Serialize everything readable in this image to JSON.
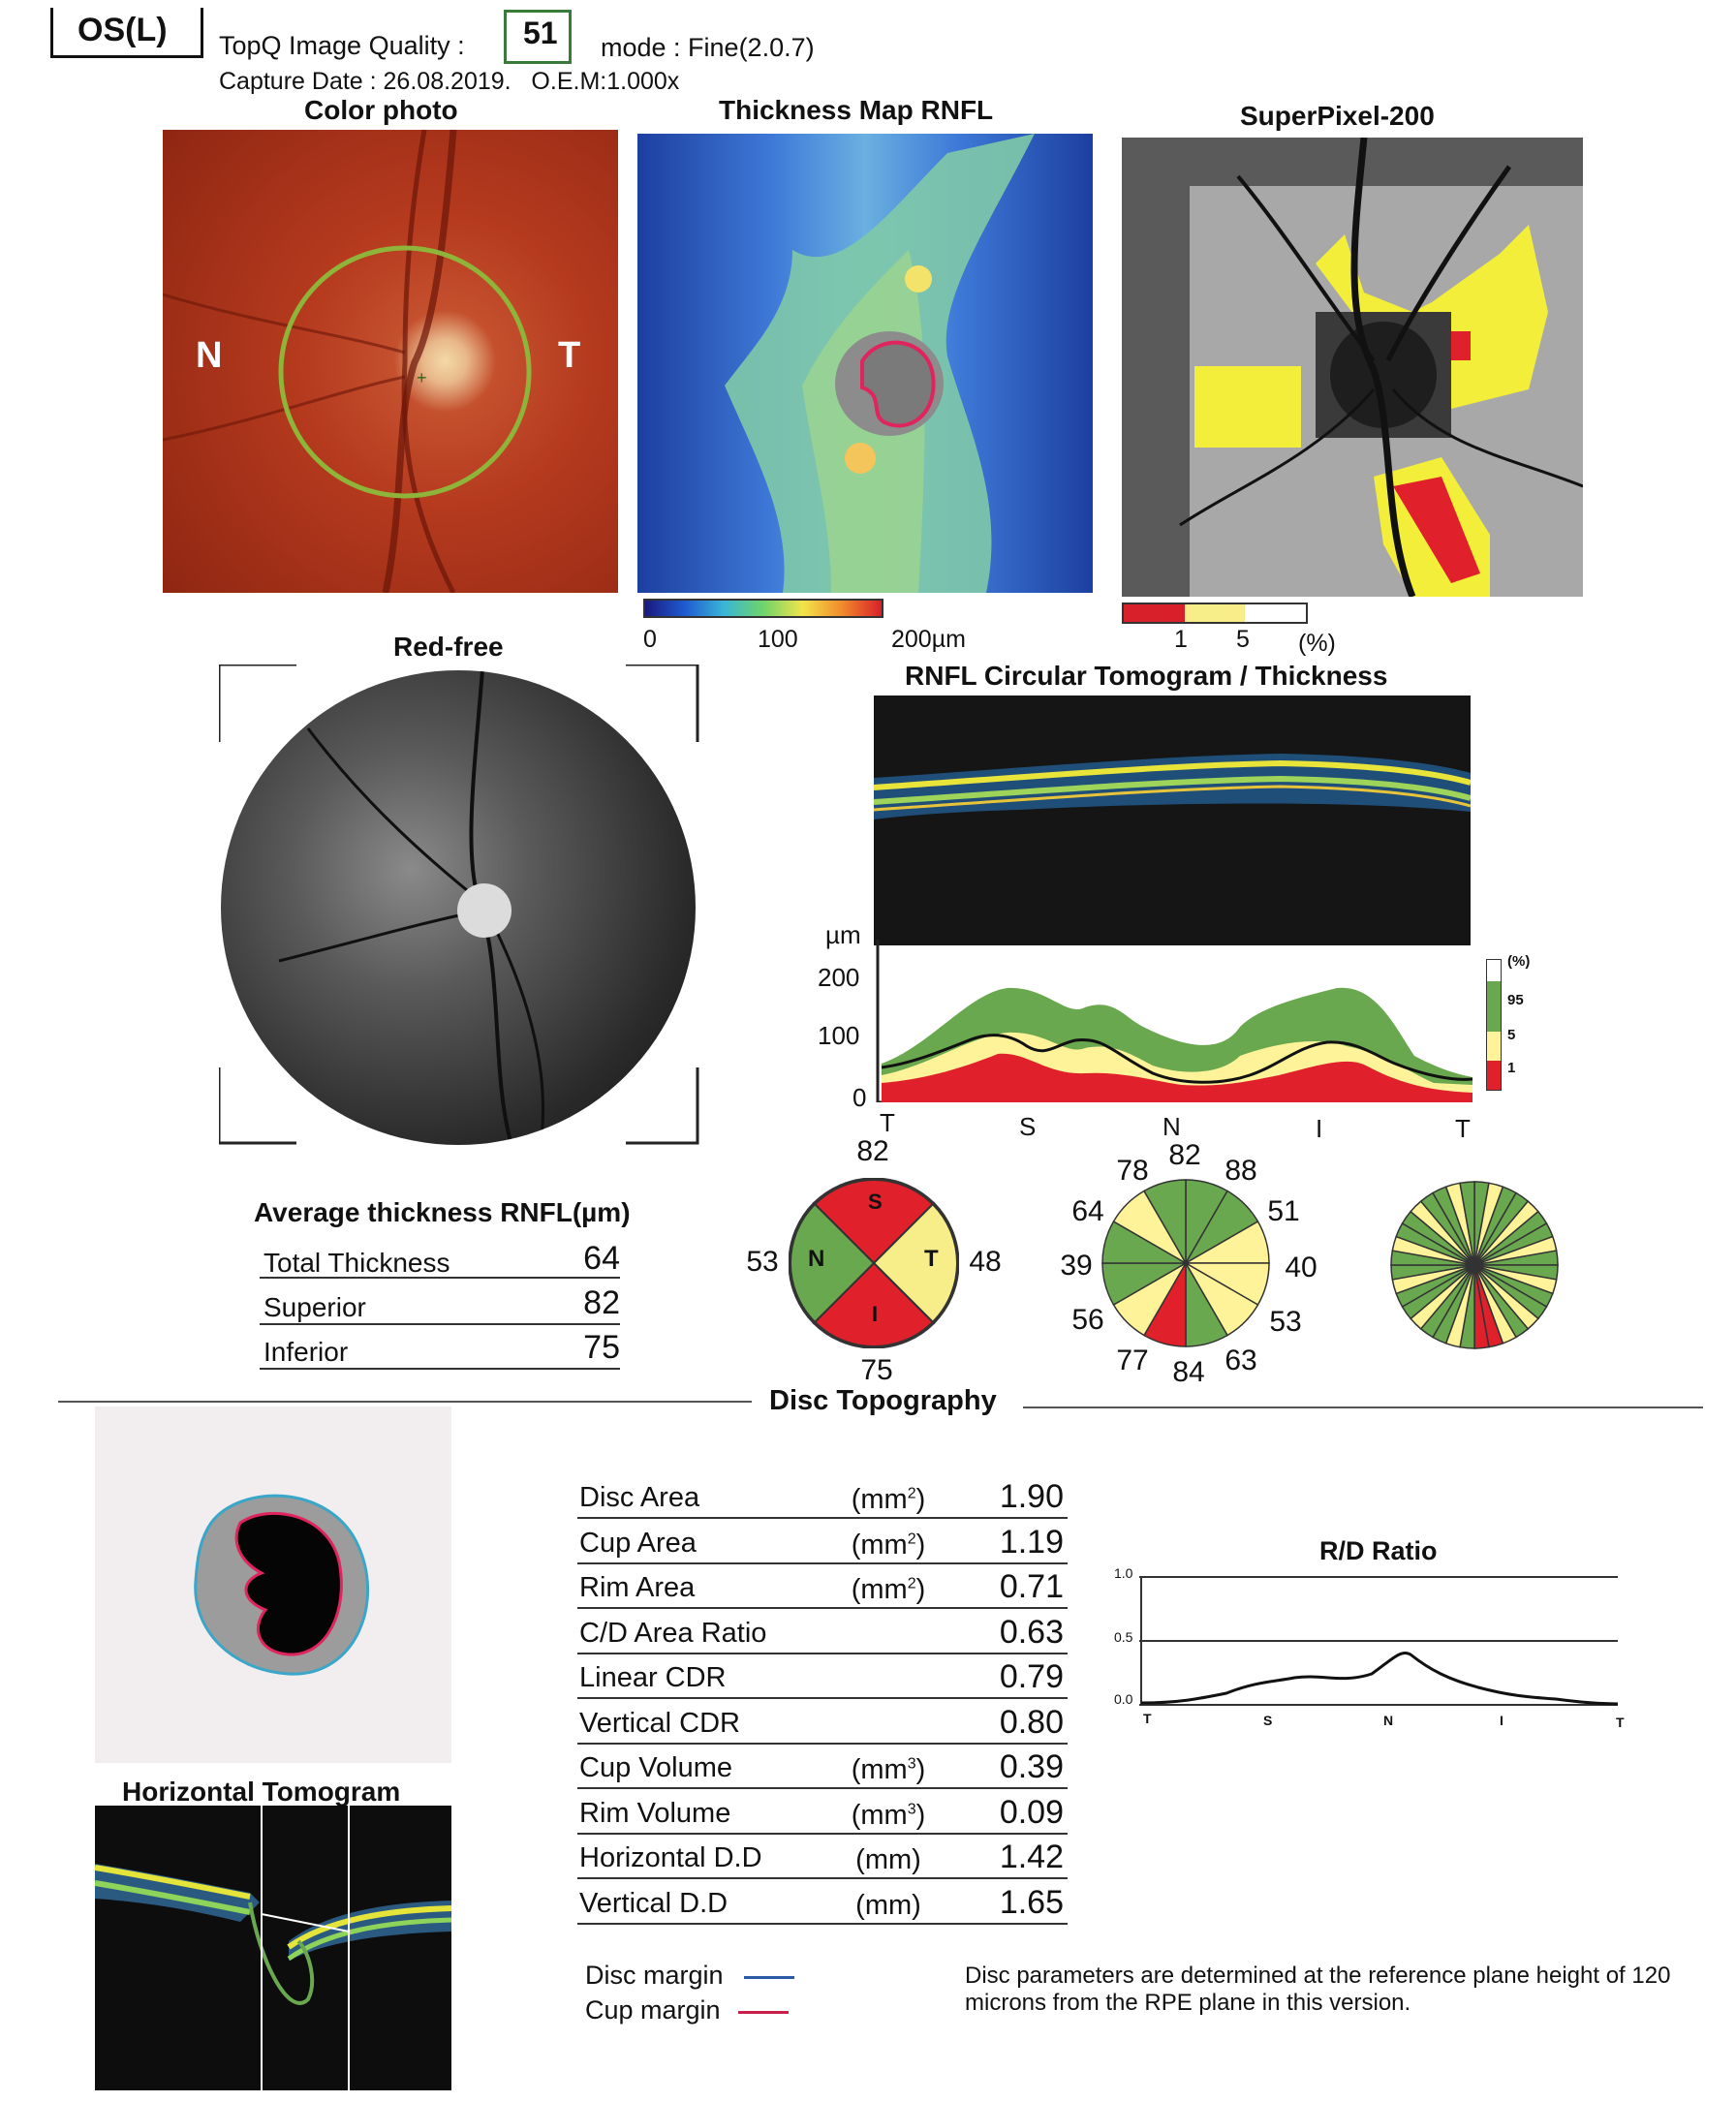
{
  "header": {
    "eye": "OS(L)",
    "quality_label": "TopQ Image Quality :",
    "quality_value": "51",
    "mode": "mode : Fine(2.0.7)",
    "capture": "Capture Date : 26.08.2019.   O.E.M:1.000x"
  },
  "panels": {
    "color_photo": {
      "title": "Color photo",
      "n": "N",
      "t": "T"
    },
    "thickness_map": {
      "title": "Thickness Map RNFL",
      "scale": [
        "0",
        "100",
        "200µm"
      ]
    },
    "superpixel": {
      "title": "SuperPixel-200",
      "scale": [
        "1",
        "5",
        "(%)"
      ]
    },
    "red_free": {
      "title": "Red-free"
    },
    "circ_tomo": {
      "title": "RNFL Circular Tomogram / Thickness"
    }
  },
  "thickness_chart": {
    "y_unit": "µm",
    "y_ticks": [
      "200",
      "100",
      "0"
    ],
    "x_ticks": [
      "T",
      "S",
      "N",
      "I",
      "T"
    ],
    "legend": [
      "(%)",
      "95",
      "5",
      "1"
    ]
  },
  "chart_data": {
    "type": "area",
    "x_labels": [
      "T",
      "S",
      "N",
      "I",
      "T"
    ],
    "ylim": [
      0,
      200
    ],
    "ylabel": "µm",
    "colors": {
      "green": "#6aa84f",
      "yellow": "#fff39a",
      "red": "#e0202a",
      "white": "#ffffff"
    }
  },
  "average": {
    "title": "Average thickness RNFL(µm)",
    "rows": [
      {
        "label": "Total Thickness",
        "value": "64"
      },
      {
        "label": "Superior",
        "value": "82"
      },
      {
        "label": "Inferior",
        "value": "75"
      }
    ]
  },
  "quadrant": {
    "top": "82",
    "left": "53",
    "right": "48",
    "bottom": "75",
    "s": "S",
    "n": "N",
    "t": "T",
    "i": "I"
  },
  "clock": {
    "labels": [
      "78",
      "82",
      "88",
      "64",
      "51",
      "39",
      "40",
      "56",
      "53",
      "77",
      "84",
      "63"
    ]
  },
  "disc_topography": {
    "title": "Disc Topography",
    "rows": [
      {
        "label": "Disc Area",
        "unit": "(mm2)",
        "unit_sup": "2",
        "unit_base": "(mm",
        "value": "1.90"
      },
      {
        "label": "Cup Area",
        "unit": "(mm2)",
        "unit_sup": "2",
        "unit_base": "(mm",
        "value": "1.19"
      },
      {
        "label": "Rim Area",
        "unit": "(mm2)",
        "unit_sup": "2",
        "unit_base": "(mm",
        "value": "0.71"
      },
      {
        "label": "C/D Area Ratio",
        "unit": "",
        "value": "0.63"
      },
      {
        "label": "Linear CDR",
        "unit": "",
        "value": "0.79"
      },
      {
        "label": "Vertical CDR",
        "unit": "",
        "value": "0.80"
      },
      {
        "label": "Cup Volume",
        "unit": "(mm3)",
        "unit_sup": "3",
        "unit_base": "(mm",
        "value": "0.39"
      },
      {
        "label": "Rim Volume",
        "unit": "(mm3)",
        "unit_sup": "3",
        "unit_base": "(mm",
        "value": "0.09"
      },
      {
        "label": "Horizontal D.D",
        "unit": "(mm)",
        "value": "1.42"
      },
      {
        "label": "Vertical D.D",
        "unit": "(mm)",
        "value": "1.65"
      }
    ]
  },
  "rd_ratio": {
    "title": "R/D Ratio",
    "y_ticks": [
      "1.0",
      "0.5",
      "0.0"
    ],
    "x_ticks": [
      "T",
      "S",
      "N",
      "I",
      "T"
    ]
  },
  "horizontal_tomogram": {
    "title": "Horizontal Tomogram"
  },
  "legend": {
    "disc_margin": "Disc margin",
    "cup_margin": "Cup margin"
  },
  "note": "Disc parameters are determined at the reference plane height of 120 microns from the RPE plane in this version."
}
